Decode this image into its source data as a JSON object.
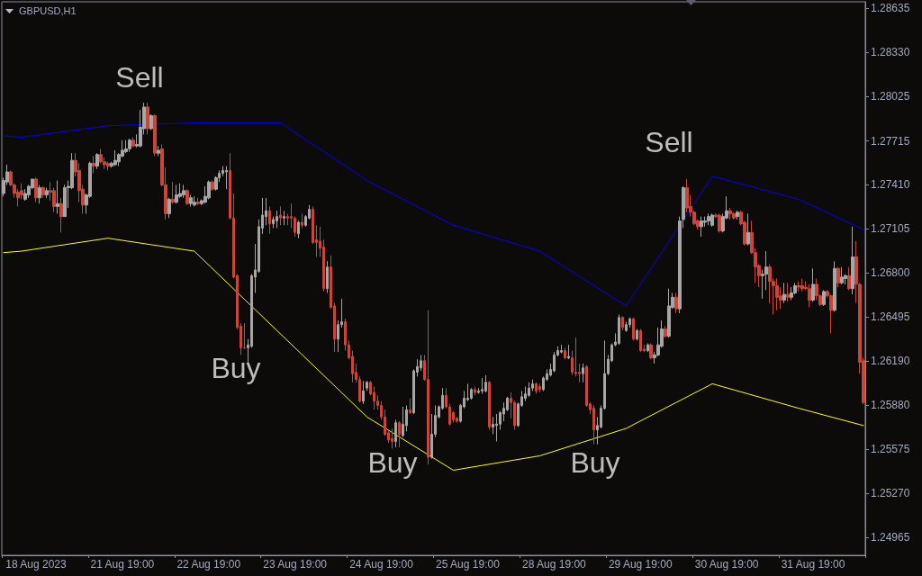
{
  "chart_data": {
    "type": "candlestick",
    "title": "GBPUSD,H1",
    "annotations": [
      "Sell",
      "Buy",
      "Buy",
      "Buy",
      "Sell"
    ],
    "categories": [
      null,
      null,
      null,
      null,
      null,
      null,
      null,
      null,
      null,
      "18 Aug 2023",
      null,
      null,
      null,
      null,
      null,
      null,
      null,
      null,
      null,
      null,
      null,
      null,
      null,
      null,
      null,
      null,
      null,
      null,
      null,
      null,
      null,
      null,
      null,
      "21 Aug 19:00",
      null,
      null,
      null,
      null,
      null,
      null,
      null,
      null,
      null,
      null,
      null,
      null,
      null,
      null,
      null,
      null,
      null,
      null,
      null,
      null,
      null,
      null,
      null,
      "22 Aug 19:00",
      null,
      null,
      null,
      null,
      null,
      null,
      null,
      null,
      null,
      null,
      null,
      null,
      null,
      null,
      null,
      null,
      null,
      null,
      null,
      null,
      null,
      null,
      null,
      "23 Aug 19:00",
      null,
      null,
      null,
      null,
      null,
      null,
      null,
      null,
      null,
      null,
      null,
      null,
      null,
      null,
      null,
      null,
      null,
      null,
      null,
      null,
      null,
      null,
      null,
      "24 Aug 19:00",
      null,
      null,
      null,
      null,
      null,
      null,
      null,
      null,
      null,
      null,
      null,
      null,
      null,
      null,
      null,
      null,
      null,
      null,
      null,
      null,
      null,
      null,
      null,
      "25 Aug 19:00",
      null,
      null,
      null,
      null,
      null,
      null,
      null,
      null,
      null,
      null,
      null,
      null,
      null,
      null,
      null,
      null,
      null,
      null,
      null,
      null,
      null,
      null,
      null,
      "28 Aug 19:00",
      null,
      null,
      null,
      null,
      null,
      null,
      null,
      null,
      null,
      null,
      null,
      null,
      null,
      null,
      null,
      null,
      null,
      null,
      null,
      null,
      null,
      null,
      null,
      "29 Aug 19:00",
      null,
      null,
      null,
      null,
      null,
      null,
      null,
      null,
      null,
      null,
      null,
      null,
      null,
      null,
      null,
      null,
      null,
      null,
      null,
      null,
      null,
      null,
      null,
      "30 Aug 19:00",
      null,
      null,
      null,
      null,
      null,
      null,
      null,
      null,
      null,
      null,
      null,
      null,
      null,
      null,
      null,
      null,
      null,
      null,
      null,
      null,
      null,
      null,
      null,
      "31 Aug 19:00",
      null,
      null,
      null,
      null,
      null,
      null,
      null,
      null,
      null,
      null,
      null,
      null,
      null,
      null
    ],
    "ohlc": [
      [
        1.2735,
        1.2746,
        1.2733,
        1.2744
      ],
      [
        1.2743,
        1.2755,
        1.2741,
        1.275
      ],
      [
        1.275,
        1.2751,
        1.274,
        1.2741
      ],
      [
        1.2741,
        1.2742,
        1.2732,
        1.2735
      ],
      [
        1.2736,
        1.2738,
        1.2726,
        1.2732
      ],
      [
        1.2737,
        1.2742,
        1.2731,
        1.2734
      ],
      [
        1.2731,
        1.2738,
        1.273,
        1.2735
      ],
      [
        1.2734,
        1.2741,
        1.2732,
        1.274
      ],
      [
        1.2739,
        1.2745,
        1.2738,
        1.2745
      ],
      [
        1.2745,
        1.2746,
        1.2729,
        1.2732
      ],
      [
        1.2732,
        1.2741,
        1.2728,
        1.2739
      ],
      [
        1.2739,
        1.274,
        1.2732,
        1.2734
      ],
      [
        1.2734,
        1.2739,
        1.2732,
        1.2737
      ],
      [
        1.2737,
        1.2743,
        1.273,
        1.2736
      ],
      [
        1.2737,
        1.2739,
        1.2722,
        1.2726
      ],
      [
        1.2726,
        1.2744,
        1.2721,
        1.2728
      ],
      [
        1.2728,
        1.2732,
        1.2708,
        1.2719
      ],
      [
        1.2719,
        1.2741,
        1.2719,
        1.2739
      ],
      [
        1.2739,
        1.2744,
        1.2725,
        1.274
      ],
      [
        1.2739,
        1.2763,
        1.2738,
        1.2758
      ],
      [
        1.2758,
        1.2763,
        1.2747,
        1.275
      ],
      [
        1.2751,
        1.2756,
        1.2729,
        1.2737
      ],
      [
        1.2738,
        1.2741,
        1.2721,
        1.2727
      ],
      [
        1.2727,
        1.2735,
        1.2721,
        1.2734
      ],
      [
        1.2733,
        1.2757,
        1.2732,
        1.2756
      ],
      [
        1.2756,
        1.2761,
        1.2749,
        1.2754
      ],
      [
        1.2754,
        1.2763,
        1.2752,
        1.2762
      ],
      [
        1.2762,
        1.2766,
        1.2756,
        1.2757
      ],
      [
        1.2757,
        1.276,
        1.2752,
        1.2755
      ],
      [
        1.2756,
        1.2757,
        1.2751,
        1.2754
      ],
      [
        1.2754,
        1.2757,
        1.2753,
        1.2756
      ],
      [
        1.2755,
        1.2765,
        1.2754,
        1.2758
      ],
      [
        1.2757,
        1.2763,
        1.2754,
        1.2762
      ],
      [
        1.2761,
        1.2772,
        1.276,
        1.2765
      ],
      [
        1.2764,
        1.2772,
        1.2763,
        1.2766
      ],
      [
        1.2766,
        1.2773,
        1.2764,
        1.2772
      ],
      [
        1.2772,
        1.2774,
        1.2767,
        1.2768
      ],
      [
        1.2768,
        1.2776,
        1.2767,
        1.2769
      ],
      [
        1.2768,
        1.2793,
        1.2767,
        1.2781
      ],
      [
        1.278,
        1.2798,
        1.2776,
        1.2795
      ],
      [
        1.2795,
        1.2798,
        1.2776,
        1.278
      ],
      [
        1.278,
        1.279,
        1.2779,
        1.2789
      ],
      [
        1.2789,
        1.279,
        1.2761,
        1.2763
      ],
      [
        1.2763,
        1.2768,
        1.2761,
        1.2765
      ],
      [
        1.2766,
        1.2769,
        1.274,
        1.2741
      ],
      [
        1.2741,
        1.2753,
        1.2717,
        1.2721
      ],
      [
        1.2721,
        1.2732,
        1.2718,
        1.2731
      ],
      [
        1.2731,
        1.2743,
        1.2728,
        1.2729
      ],
      [
        1.2729,
        1.2741,
        1.2728,
        1.2734
      ],
      [
        1.2733,
        1.2742,
        1.2732,
        1.2735
      ],
      [
        1.2734,
        1.2741,
        1.2732,
        1.2737
      ],
      [
        1.2737,
        1.2738,
        1.2727,
        1.2728
      ],
      [
        1.2728,
        1.2734,
        1.2726,
        1.2732
      ],
      [
        1.2727,
        1.2733,
        1.2726,
        1.2729
      ],
      [
        1.2729,
        1.2732,
        1.2727,
        1.2728
      ],
      [
        1.2728,
        1.2731,
        1.2727,
        1.273
      ],
      [
        1.2729,
        1.274,
        1.2728,
        1.2733
      ],
      [
        1.2732,
        1.2744,
        1.2731,
        1.2743
      ],
      [
        1.2743,
        1.2744,
        1.2737,
        1.2738
      ],
      [
        1.2738,
        1.2747,
        1.2737,
        1.2746
      ],
      [
        1.2746,
        1.2751,
        1.2743,
        1.2749
      ],
      [
        1.2749,
        1.2754,
        1.2747,
        1.2751
      ],
      [
        1.275,
        1.2754,
        1.2738,
        1.2751
      ],
      [
        1.2751,
        1.2763,
        1.2717,
        1.2718
      ],
      [
        1.2718,
        1.2735,
        1.2676,
        1.2677
      ],
      [
        1.2678,
        1.2679,
        1.2641,
        1.2642
      ],
      [
        1.2643,
        1.2645,
        1.2623,
        1.2628
      ],
      [
        1.2628,
        1.2645,
        1.2627,
        1.2628
      ],
      [
        1.2628,
        1.2634,
        1.2617,
        1.263
      ],
      [
        1.2629,
        1.2679,
        1.2628,
        1.2678
      ],
      [
        1.2677,
        1.27,
        1.2666,
        1.2682
      ],
      [
        1.2681,
        1.2717,
        1.268,
        1.2712
      ],
      [
        1.2711,
        1.2732,
        1.2707,
        1.272
      ],
      [
        1.2719,
        1.2732,
        1.2713,
        1.2723
      ],
      [
        1.2723,
        1.2726,
        1.2707,
        1.2714
      ],
      [
        1.2714,
        1.2719,
        1.2711,
        1.2717
      ],
      [
        1.2716,
        1.2723,
        1.2711,
        1.2719
      ],
      [
        1.272,
        1.2726,
        1.2713,
        1.2718
      ],
      [
        1.2718,
        1.2723,
        1.2713,
        1.2719
      ],
      [
        1.2719,
        1.2721,
        1.2713,
        1.2718
      ],
      [
        1.2719,
        1.2728,
        1.2711,
        1.2718
      ],
      [
        1.2718,
        1.2719,
        1.2705,
        1.2708
      ],
      [
        1.2707,
        1.2716,
        1.2704,
        1.2715
      ],
      [
        1.2715,
        1.2721,
        1.2711,
        1.2713
      ],
      [
        1.2713,
        1.272,
        1.2712,
        1.2719
      ],
      [
        1.2718,
        1.2727,
        1.2717,
        1.2724
      ],
      [
        1.2724,
        1.2726,
        1.27,
        1.2701
      ],
      [
        1.2703,
        1.2713,
        1.2691,
        1.2701
      ],
      [
        1.2702,
        1.2712,
        1.2691,
        1.2697
      ],
      [
        1.2698,
        1.2703,
        1.2667,
        1.2669
      ],
      [
        1.2669,
        1.2688,
        1.2666,
        1.2684
      ],
      [
        1.2684,
        1.2692,
        1.2655,
        1.2656
      ],
      [
        1.2657,
        1.2659,
        1.2625,
        1.2634
      ],
      [
        1.2634,
        1.2647,
        1.2625,
        1.2644
      ],
      [
        1.2644,
        1.2662,
        1.2642,
        1.2646
      ],
      [
        1.2646,
        1.2648,
        1.2626,
        1.263
      ],
      [
        1.263,
        1.2633,
        1.262,
        1.2621
      ],
      [
        1.2622,
        1.2626,
        1.2604,
        1.261
      ],
      [
        1.2611,
        1.2617,
        1.2604,
        1.2606
      ],
      [
        1.2606,
        1.2608,
        1.259,
        1.2591
      ],
      [
        1.2591,
        1.2605,
        1.2589,
        1.2598
      ],
      [
        1.26,
        1.2605,
        1.2598,
        1.2604
      ],
      [
        1.2604,
        1.2605,
        1.2595,
        1.2596
      ],
      [
        1.2597,
        1.2601,
        1.2585,
        1.2591
      ],
      [
        1.2591,
        1.2595,
        1.2585,
        1.2588
      ],
      [
        1.2588,
        1.2591,
        1.2578,
        1.258
      ],
      [
        1.258,
        1.2585,
        1.2567,
        1.2568
      ],
      [
        1.2569,
        1.257,
        1.2562,
        1.2564
      ],
      [
        1.2565,
        1.2572,
        1.2558,
        1.2563
      ],
      [
        1.2563,
        1.2578,
        1.2559,
        1.2576
      ],
      [
        1.2576,
        1.2577,
        1.2559,
        1.2568
      ],
      [
        1.2567,
        1.2587,
        1.2566,
        1.2575
      ],
      [
        1.2574,
        1.2588,
        1.257,
        1.2585
      ],
      [
        1.2585,
        1.2593,
        1.2582,
        1.2583
      ],
      [
        1.2583,
        1.2613,
        1.2582,
        1.2612
      ],
      [
        1.2611,
        1.262,
        1.2608,
        1.2615
      ],
      [
        1.2614,
        1.2623,
        1.2612,
        1.2619
      ],
      [
        1.2619,
        1.2623,
        1.2605,
        1.2606
      ],
      [
        1.2606,
        1.2654,
        1.2547,
        1.2552
      ],
      [
        1.2552,
        1.2582,
        1.2551,
        1.2568
      ],
      [
        1.2568,
        1.2588,
        1.2566,
        1.2581
      ],
      [
        1.258,
        1.2588,
        1.2579,
        1.2587
      ],
      [
        1.2586,
        1.26,
        1.2585,
        1.2595
      ],
      [
        1.2595,
        1.26,
        1.2586,
        1.2587
      ],
      [
        1.2587,
        1.2589,
        1.2574,
        1.2575
      ],
      [
        1.2583,
        1.2584,
        1.2576,
        1.2578
      ],
      [
        1.2579,
        1.258,
        1.2576,
        1.2577
      ],
      [
        1.2577,
        1.2589,
        1.2576,
        1.2588
      ],
      [
        1.2587,
        1.2598,
        1.2586,
        1.2593
      ],
      [
        1.2592,
        1.2603,
        1.2591,
        1.2593
      ],
      [
        1.2593,
        1.26,
        1.2592,
        1.2599
      ],
      [
        1.2599,
        1.2601,
        1.2595,
        1.2597
      ],
      [
        1.2597,
        1.26,
        1.2596,
        1.2598
      ],
      [
        1.2598,
        1.2607,
        1.2596,
        1.2599
      ],
      [
        1.2598,
        1.2609,
        1.2597,
        1.2604
      ],
      [
        1.2604,
        1.2605,
        1.2571,
        1.2573
      ],
      [
        1.2573,
        1.258,
        1.2568,
        1.2575
      ],
      [
        1.2574,
        1.2582,
        1.2563,
        1.2575
      ],
      [
        1.2575,
        1.2584,
        1.2571,
        1.2583
      ],
      [
        1.2582,
        1.259,
        1.2577,
        1.2586
      ],
      [
        1.2585,
        1.2594,
        1.2584,
        1.2593
      ],
      [
        1.2593,
        1.2597,
        1.2579,
        1.259
      ],
      [
        1.259,
        1.2591,
        1.2571,
        1.2574
      ],
      [
        1.2574,
        1.259,
        1.2573,
        1.2589
      ],
      [
        1.2588,
        1.2598,
        1.2587,
        1.2594
      ],
      [
        1.2593,
        1.2601,
        1.2591,
        1.2596
      ],
      [
        1.2595,
        1.2604,
        1.2594,
        1.26
      ],
      [
        1.26,
        1.2606,
        1.2598,
        1.2603
      ],
      [
        1.2603,
        1.2604,
        1.2596,
        1.2598
      ],
      [
        1.2601,
        1.2603,
        1.2597,
        1.2599
      ],
      [
        1.2599,
        1.2608,
        1.2598,
        1.2607
      ],
      [
        1.2606,
        1.2613,
        1.2605,
        1.261
      ],
      [
        1.2609,
        1.2617,
        1.2608,
        1.2613
      ],
      [
        1.2612,
        1.2625,
        1.2611,
        1.2623
      ],
      [
        1.2623,
        1.2629,
        1.2622,
        1.2626
      ],
      [
        1.2625,
        1.263,
        1.2624,
        1.2626
      ],
      [
        1.2626,
        1.2628,
        1.262,
        1.2621
      ],
      [
        1.2621,
        1.263,
        1.262,
        1.2622
      ],
      [
        1.2621,
        1.2626,
        1.2609,
        1.2611
      ],
      [
        1.2611,
        1.2635,
        1.2608,
        1.261
      ],
      [
        1.2611,
        1.2617,
        1.2604,
        1.261
      ],
      [
        1.261,
        1.2617,
        1.2604,
        1.2614
      ],
      [
        1.2615,
        1.2616,
        1.2587,
        1.2588
      ],
      [
        1.2589,
        1.259,
        1.2582,
        1.2585
      ],
      [
        1.2586,
        1.2588,
        1.2561,
        1.2571
      ],
      [
        1.2571,
        1.258,
        1.2561,
        1.2574
      ],
      [
        1.2573,
        1.2588,
        1.2572,
        1.2586
      ],
      [
        1.2586,
        1.2633,
        1.2585,
        1.261
      ],
      [
        1.261,
        1.2623,
        1.2609,
        1.262
      ],
      [
        1.2619,
        1.2631,
        1.2618,
        1.263
      ],
      [
        1.263,
        1.2638,
        1.2629,
        1.2632
      ],
      [
        1.2631,
        1.2651,
        1.263,
        1.2649
      ],
      [
        1.2649,
        1.265,
        1.264,
        1.2642
      ],
      [
        1.264,
        1.2646,
        1.2639,
        1.2644
      ],
      [
        1.2644,
        1.2649,
        1.2642,
        1.2648
      ],
      [
        1.2648,
        1.2649,
        1.2633,
        1.2634
      ],
      [
        1.2634,
        1.2641,
        1.2633,
        1.264
      ],
      [
        1.264,
        1.2641,
        1.2625,
        1.2626
      ],
      [
        1.2627,
        1.263,
        1.2625,
        1.2626
      ],
      [
        1.2626,
        1.2631,
        1.2625,
        1.263
      ],
      [
        1.263,
        1.2631,
        1.262,
        1.2621
      ],
      [
        1.2621,
        1.2625,
        1.2617,
        1.2623
      ],
      [
        1.2623,
        1.2642,
        1.2622,
        1.263
      ],
      [
        1.2629,
        1.2647,
        1.2628,
        1.2641
      ],
      [
        1.2641,
        1.2643,
        1.2635,
        1.2636
      ],
      [
        1.2636,
        1.2669,
        1.2635,
        1.2657
      ],
      [
        1.2656,
        1.2666,
        1.2655,
        1.2663
      ],
      [
        1.2663,
        1.2666,
        1.2652,
        1.2655
      ],
      [
        1.2655,
        1.2719,
        1.2652,
        1.2716
      ],
      [
        1.2717,
        1.274,
        1.2711,
        1.2739
      ],
      [
        1.2739,
        1.2745,
        1.2722,
        1.2725
      ],
      [
        1.2726,
        1.2734,
        1.2719,
        1.2722
      ],
      [
        1.2722,
        1.2723,
        1.2713,
        1.2714
      ],
      [
        1.2716,
        1.2717,
        1.271,
        1.2712
      ],
      [
        1.2712,
        1.2719,
        1.2705,
        1.2716
      ],
      [
        1.2715,
        1.2719,
        1.2712,
        1.2716
      ],
      [
        1.2716,
        1.2721,
        1.2713,
        1.2719
      ],
      [
        1.2713,
        1.2721,
        1.2712,
        1.272
      ],
      [
        1.272,
        1.2721,
        1.2718,
        1.2719
      ],
      [
        1.272,
        1.2721,
        1.2708,
        1.2709
      ],
      [
        1.2709,
        1.2721,
        1.2708,
        1.2719
      ],
      [
        1.2718,
        1.2733,
        1.2717,
        1.2723
      ],
      [
        1.2723,
        1.2725,
        1.2717,
        1.2721
      ],
      [
        1.2721,
        1.2722,
        1.2717,
        1.2718
      ],
      [
        1.2719,
        1.2723,
        1.2717,
        1.2722
      ],
      [
        1.2722,
        1.2723,
        1.2713,
        1.2714
      ],
      [
        1.2715,
        1.2716,
        1.2699,
        1.27
      ],
      [
        1.27,
        1.2721,
        1.2699,
        1.2708
      ],
      [
        1.2708,
        1.2716,
        1.2693,
        1.2694
      ],
      [
        1.2694,
        1.2697,
        1.2673,
        1.2684
      ],
      [
        1.2685,
        1.2686,
        1.267,
        1.2678
      ],
      [
        1.2678,
        1.2682,
        1.2662,
        1.2679
      ],
      [
        1.2679,
        1.2695,
        1.2668,
        1.2684
      ],
      [
        1.2684,
        1.2686,
        1.2659,
        1.2674
      ],
      [
        1.2674,
        1.2676,
        1.2651,
        1.2671
      ],
      [
        1.2671,
        1.2676,
        1.2654,
        1.2663
      ],
      [
        1.2664,
        1.267,
        1.2655,
        1.2661
      ],
      [
        1.2661,
        1.2673,
        1.2659,
        1.2665
      ],
      [
        1.2665,
        1.2673,
        1.266,
        1.2663
      ],
      [
        1.2663,
        1.267,
        1.2661,
        1.2666
      ],
      [
        1.2666,
        1.2673,
        1.2665,
        1.2671
      ],
      [
        1.2671,
        1.2674,
        1.2667,
        1.267
      ],
      [
        1.2671,
        1.2676,
        1.2667,
        1.2669
      ],
      [
        1.267,
        1.2674,
        1.2668,
        1.2669
      ],
      [
        1.2669,
        1.2672,
        1.2656,
        1.2661
      ],
      [
        1.2661,
        1.2683,
        1.266,
        1.2672
      ],
      [
        1.2672,
        1.2676,
        1.2661,
        1.2664
      ],
      [
        1.2664,
        1.2665,
        1.2657,
        1.2658
      ],
      [
        1.2658,
        1.2668,
        1.2657,
        1.2667
      ],
      [
        1.2667,
        1.2668,
        1.2663,
        1.2664
      ],
      [
        1.2664,
        1.2665,
        1.2638,
        1.2654
      ],
      [
        1.2654,
        1.2688,
        1.2653,
        1.2683
      ],
      [
        1.2683,
        1.2684,
        1.267,
        1.2673
      ],
      [
        1.2673,
        1.2684,
        1.2672,
        1.2677
      ],
      [
        1.2676,
        1.2679,
        1.2672,
        1.2678
      ],
      [
        1.2678,
        1.2684,
        1.2668,
        1.2669
      ],
      [
        1.2669,
        1.2712,
        1.2665,
        1.2691
      ],
      [
        1.2691,
        1.2702,
        1.2659,
        1.2672
      ],
      [
        1.2672,
        1.2673,
        1.261,
        1.2618
      ],
      [
        1.2619,
        1.2621,
        1.2589,
        1.259
      ]
    ],
    "colors": [
      "#a6a6a6",
      "#a6a6a6",
      "#c8473a",
      "#c8473a",
      "#c8473a",
      "#c8473a",
      "#a6a6a6",
      "#a6a6a6",
      "#a6a6a6",
      "#c8473a",
      "#a6a6a6",
      "#c8473a",
      "#a6a6a6",
      "#c8473a",
      "#c8473a",
      "#a6a6a6",
      "#c8473a",
      "#a6a6a6",
      "#a6a6a6",
      "#a6a6a6",
      "#c8473a",
      "#c8473a",
      "#c8473a",
      "#a6a6a6",
      "#a6a6a6",
      "#c8473a",
      "#a6a6a6",
      "#c8473a",
      "#c8473a",
      "#c8473a",
      "#a6a6a6",
      "#a6a6a6",
      "#a6a6a6",
      "#a6a6a6",
      "#a6a6a6",
      "#a6a6a6",
      "#c8473a",
      "#a6a6a6",
      "#a6a6a6",
      "#a6a6a6",
      "#c8473a",
      "#a6a6a6",
      "#c8473a",
      "#a6a6a6",
      "#c8473a",
      "#c8473a",
      "#a6a6a6",
      "#c8473a",
      "#a6a6a6",
      "#a6a6a6",
      "#a6a6a6",
      "#c8473a",
      "#a6a6a6",
      "#a6a6a6",
      "#c8473a",
      "#a6a6a6",
      "#a6a6a6",
      "#a6a6a6",
      "#c8473a",
      "#a6a6a6",
      "#a6a6a6",
      "#a6a6a6",
      "#a6a6a6",
      "#c8473a",
      "#c8473a",
      "#c8473a",
      "#c8473a",
      "#c8473a",
      "#a6a6a6",
      "#a6a6a6",
      "#a6a6a6",
      "#a6a6a6",
      "#a6a6a6",
      "#a6a6a6",
      "#c8473a",
      "#a6a6a6",
      "#a6a6a6",
      "#c8473a",
      "#a6a6a6",
      "#c8473a",
      "#c8473a",
      "#c8473a",
      "#a6a6a6",
      "#c8473a",
      "#a6a6a6",
      "#a6a6a6",
      "#c8473a",
      "#c8473a",
      "#c8473a",
      "#c8473a",
      "#a6a6a6",
      "#c8473a",
      "#c8473a",
      "#a6a6a6",
      "#a6a6a6",
      "#c8473a",
      "#c8473a",
      "#c8473a",
      "#c8473a",
      "#c8473a",
      "#a6a6a6",
      "#a6a6a6",
      "#c8473a",
      "#c8473a",
      "#c8473a",
      "#c8473a",
      "#c8473a",
      "#c8473a",
      "#c8473a",
      "#a6a6a6",
      "#c8473a",
      "#a6a6a6",
      "#a6a6a6",
      "#c8473a",
      "#a6a6a6",
      "#a6a6a6",
      "#a6a6a6",
      "#c8473a",
      "#c8473a",
      "#a6a6a6",
      "#a6a6a6",
      "#a6a6a6",
      "#a6a6a6",
      "#c8473a",
      "#c8473a",
      "#c8473a",
      "#c8473a",
      "#a6a6a6",
      "#a6a6a6",
      "#a6a6a6",
      "#a6a6a6",
      "#c8473a",
      "#a6a6a6",
      "#a6a6a6",
      "#a6a6a6",
      "#c8473a",
      "#a6a6a6",
      "#a6a6a6",
      "#a6a6a6",
      "#a6a6a6",
      "#a6a6a6",
      "#c8473a",
      "#c8473a",
      "#a6a6a6",
      "#a6a6a6",
      "#a6a6a6",
      "#a6a6a6",
      "#a6a6a6",
      "#c8473a",
      "#c8473a",
      "#a6a6a6",
      "#a6a6a6",
      "#a6a6a6",
      "#a6a6a6",
      "#a6a6a6",
      "#a6a6a6",
      "#c8473a",
      "#a6a6a6",
      "#c8473a",
      "#c8473a",
      "#c8473a",
      "#a6a6a6",
      "#c8473a",
      "#c8473a",
      "#c8473a",
      "#a6a6a6",
      "#a6a6a6",
      "#a6a6a6",
      "#a6a6a6",
      "#a6a6a6",
      "#a6a6a6",
      "#a6a6a6",
      "#c8473a",
      "#a6a6a6",
      "#a6a6a6",
      "#c8473a",
      "#a6a6a6",
      "#c8473a",
      "#c8473a",
      "#a6a6a6",
      "#c8473a",
      "#a6a6a6",
      "#a6a6a6",
      "#a6a6a6",
      "#c8473a",
      "#a6a6a6",
      "#a6a6a6",
      "#c8473a",
      "#a6a6a6",
      "#a6a6a6",
      "#c8473a",
      "#c8473a",
      "#c8473a",
      "#c8473a",
      "#a6a6a6",
      "#a6a6a6",
      "#a6a6a6",
      "#a6a6a6",
      "#c8473a",
      "#c8473a",
      "#a6a6a6",
      "#a6a6a6",
      "#c8473a",
      "#c8473a",
      "#a6a6a6",
      "#c8473a",
      "#c8473a",
      "#a6a6a6",
      "#c8473a",
      "#c8473a",
      "#c8473a",
      "#a6a6a6",
      "#a6a6a6",
      "#c8473a",
      "#c8473a",
      "#c8473a",
      "#c8473a",
      "#a6a6a6",
      "#c8473a",
      "#a6a6a6",
      "#a6a6a6",
      "#c8473a",
      "#c8473a",
      "#c8473a",
      "#c8473a",
      "#a6a6a6",
      "#c8473a",
      "#c8473a",
      "#a6a6a6",
      "#c8473a",
      "#c8473a",
      "#a6a6a6",
      "#c8473a",
      "#a6a6a6",
      "#a6a6a6",
      "#c8473a",
      "#a6a6a6",
      "#c8473a",
      "#c8473a",
      "#c8473a"
    ],
    "series": [
      {
        "type": "line",
        "color": "#0000ff",
        "values": [
          1.2775,
          null,
          null,
          null,
          null,
          1.2774,
          null,
          null,
          null,
          null,
          null,
          null,
          null,
          null,
          null,
          null,
          null,
          null,
          null,
          null,
          null,
          null,
          null,
          null,
          null,
          null,
          null,
          null,
          null,
          1.2782,
          null,
          null,
          null,
          null,
          null,
          null,
          null,
          null,
          null,
          null,
          null,
          null,
          null,
          null,
          null,
          null,
          null,
          null,
          null,
          null,
          null,
          null,
          null,
          1.2784,
          null,
          null,
          null,
          null,
          null,
          null,
          null,
          null,
          null,
          null,
          null,
          null,
          null,
          null,
          null,
          null,
          null,
          null,
          null,
          null,
          null,
          null,
          null,
          1.2784,
          null,
          null,
          null,
          null,
          null,
          null,
          null,
          null,
          null,
          null,
          null,
          null,
          null,
          null,
          null,
          null,
          null,
          null,
          null,
          null,
          null,
          null,
          null,
          1.2744,
          null,
          null,
          null,
          null,
          null,
          null,
          null,
          null,
          null,
          null,
          null,
          null,
          null,
          null,
          null,
          null,
          null,
          null,
          null,
          null,
          null,
          null,
          null,
          1.2713,
          null,
          null,
          null,
          null,
          null,
          null,
          null,
          null,
          null,
          null,
          null,
          null,
          null,
          null,
          null,
          null,
          null,
          null,
          null,
          null,
          null,
          null,
          null,
          1.2695,
          null,
          null,
          null,
          null,
          null,
          null,
          null,
          null,
          null,
          null,
          null,
          null,
          null,
          null,
          null,
          null,
          null,
          null,
          null,
          null,
          null,
          null,
          null,
          1.2657,
          null,
          null,
          null,
          null,
          null,
          null,
          null,
          null,
          null,
          null,
          null,
          null,
          null,
          null,
          null,
          null,
          null,
          null,
          null,
          null,
          null,
          null,
          null,
          1.2747,
          null,
          null,
          null,
          null,
          null,
          null,
          null,
          null,
          null,
          null,
          null,
          null,
          null,
          null,
          null,
          null,
          null,
          null,
          null,
          null,
          null,
          null,
          null,
          1.2731,
          null,
          null,
          null,
          null,
          null,
          null,
          null,
          null,
          null,
          null,
          null,
          null,
          null,
          null,
          null,
          null,
          null,
          1.271
        ]
      },
      {
        "type": "line",
        "color": "#ffff00",
        "values": [
          1.2694,
          null,
          null,
          null,
          null,
          1.2695,
          null,
          null,
          null,
          null,
          null,
          null,
          null,
          null,
          null,
          null,
          null,
          null,
          null,
          null,
          null,
          null,
          null,
          null,
          null,
          null,
          null,
          null,
          null,
          1.2704,
          null,
          null,
          null,
          null,
          null,
          null,
          null,
          null,
          null,
          null,
          null,
          null,
          null,
          null,
          null,
          null,
          null,
          null,
          null,
          null,
          null,
          null,
          null,
          1.2695,
          null,
          null,
          null,
          null,
          null,
          null,
          null,
          null,
          null,
          null,
          null,
          null,
          null,
          null,
          null,
          null,
          null,
          null,
          null,
          null,
          null,
          null,
          null,
          null,
          null,
          null,
          null,
          null,
          null,
          null,
          null,
          null,
          null,
          null,
          null,
          null,
          null,
          null,
          null,
          null,
          null,
          null,
          null,
          null,
          null,
          null,
          null,
          1.258,
          null,
          null,
          null,
          null,
          null,
          null,
          null,
          null,
          null,
          null,
          null,
          null,
          null,
          null,
          null,
          null,
          null,
          null,
          null,
          null,
          null,
          null,
          null,
          1.2543,
          null,
          null,
          null,
          null,
          null,
          null,
          null,
          null,
          null,
          null,
          null,
          null,
          null,
          null,
          null,
          null,
          null,
          null,
          null,
          null,
          null,
          null,
          null,
          1.2553,
          null,
          null,
          null,
          null,
          null,
          null,
          null,
          null,
          null,
          null,
          null,
          null,
          null,
          null,
          null,
          null,
          null,
          null,
          null,
          null,
          null,
          null,
          null,
          1.2572,
          null,
          null,
          null,
          null,
          null,
          null,
          null,
          null,
          null,
          null,
          null,
          null,
          null,
          null,
          null,
          null,
          null,
          null,
          null,
          null,
          null,
          null,
          null,
          1.2603,
          null,
          null,
          null,
          null,
          null,
          null,
          null,
          null,
          null,
          null,
          null,
          null,
          null,
          null,
          null,
          null,
          null,
          null,
          null,
          null,
          null,
          null,
          null,
          1.2586,
          null,
          null,
          null,
          null,
          null,
          null,
          null,
          null,
          null,
          null,
          null,
          null,
          null,
          null,
          null,
          null,
          null,
          1.2574
        ]
      }
    ],
    "ylim": [
      1.2484,
      1.2868
    ],
    "yticks": [
      1.28635,
      {
        "value": 1.2833,
        "label": "1.28330"
      },
      1.28025,
      1.27715,
      {
        "value": 1.2741,
        "label": "1.27410"
      },
      1.27105,
      {
        "value": 1.268,
        "label": "1.26800"
      },
      1.26495,
      {
        "value": 1.2619,
        "label": "1.26190"
      },
      {
        "value": 1.2588,
        "label": "1.25880"
      },
      1.25575,
      {
        "value": 1.2527,
        "label": "1.25270"
      },
      1.24965
    ]
  }
}
